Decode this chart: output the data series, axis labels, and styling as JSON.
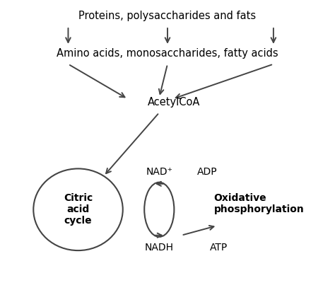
{
  "bg_color": "#ffffff",
  "text_color": "#000000",
  "line_color": "#444444",
  "top_label": "Proteins, polysaccharides and fats",
  "mid_label": "Amino acids, monosaccharides, fatty acids",
  "acetyl_label": "AcetylCoA",
  "citric_label": "Citric\nacid\ncycle",
  "ox_phos_label": "Oxidative\nphosphorylation",
  "nad_plus_label": "NAD⁺",
  "nadh_label": "NADH",
  "adp_label": "ADP",
  "atp_label": "ATP",
  "figsize": [
    4.74,
    4.34
  ],
  "dpi": 100
}
